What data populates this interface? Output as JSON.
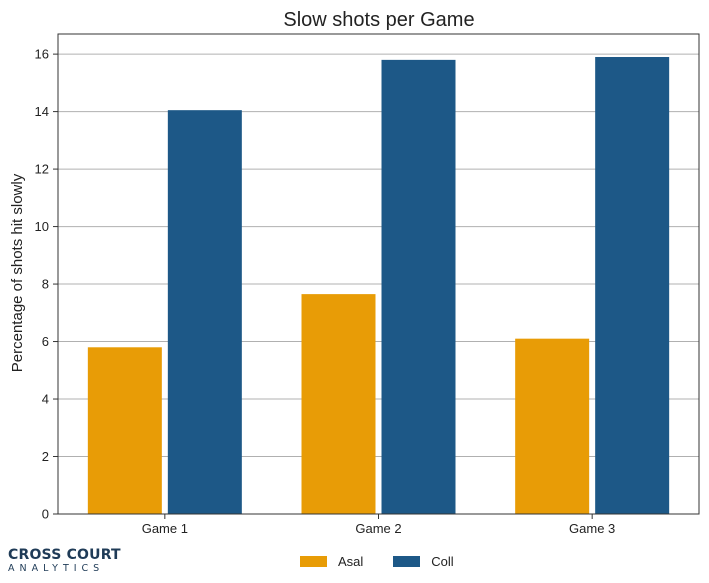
{
  "colors": {
    "Asal": "#E89C06",
    "Coll": "#1D5887",
    "grid": "#b0b0b0",
    "axis": "#333333"
  },
  "logo": {
    "line1": "CROSS COURT",
    "line2": "ANALYTICS"
  },
  "chart_data": {
    "type": "bar",
    "title": "Slow shots per Game",
    "xlabel": "",
    "ylabel": "Percentage of shots hit slowly",
    "categories": [
      "Game 1",
      "Game 2",
      "Game 3"
    ],
    "series": [
      {
        "name": "Asal",
        "color": "#E89C06",
        "values": [
          5.8,
          7.65,
          6.1
        ]
      },
      {
        "name": "Coll",
        "color": "#1D5887",
        "values": [
          14.05,
          15.8,
          15.9
        ]
      }
    ],
    "ylim": [
      0,
      16.7
    ],
    "yticks": [
      "0",
      "2",
      "4",
      "6",
      "8",
      "10",
      "12",
      "14",
      "16"
    ],
    "grid": true,
    "legend": "bottom-center"
  }
}
